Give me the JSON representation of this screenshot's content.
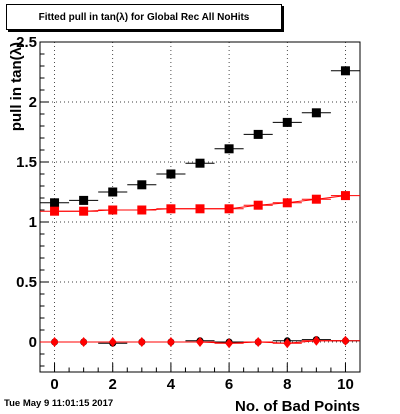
{
  "window_title": "Fitted pull in tan(λ) for Global Rec All NoHits",
  "timestamp": "Tue May  9 11:01:15 2017",
  "chart_data": {
    "type": "scatter",
    "title": "Fitted pull in tan(λ) for Global Rec All NoHits",
    "xlabel": "No. of Bad Points",
    "ylabel": "pull in tan(λ)",
    "xlim": [
      -0.5,
      10.5
    ],
    "ylim": [
      -0.25,
      2.5
    ],
    "x_ticks": [
      0,
      2,
      4,
      6,
      8,
      10
    ],
    "x_tick_labels": [
      "0",
      "2",
      "4",
      "6",
      "8",
      "10"
    ],
    "y_ticks": [
      0,
      0.5,
      1,
      1.5,
      2,
      2.5
    ],
    "y_tick_labels": [
      "0",
      "0.5",
      "1",
      "1.5",
      "2",
      "2.5"
    ],
    "grid": true,
    "series": [
      {
        "color": "#000000",
        "marker": "square",
        "line": false,
        "x": [
          0,
          1,
          2,
          3,
          4,
          5,
          6,
          7,
          8,
          9,
          10
        ],
        "values": [
          1.16,
          1.18,
          1.25,
          1.31,
          1.4,
          1.49,
          1.61,
          1.73,
          1.83,
          1.91,
          2.26
        ]
      },
      {
        "color": "#ff0000",
        "marker": "square",
        "line": true,
        "x": [
          0,
          1,
          2,
          3,
          4,
          5,
          6,
          7,
          8,
          9,
          10
        ],
        "values": [
          1.09,
          1.09,
          1.1,
          1.1,
          1.11,
          1.11,
          1.11,
          1.14,
          1.16,
          1.19,
          1.22
        ]
      },
      {
        "color": "#000000",
        "marker": "circle",
        "line": false,
        "x": [
          0,
          1,
          2,
          3,
          4,
          5,
          6,
          7,
          8,
          9,
          10
        ],
        "values": [
          0.0,
          0.0,
          -0.01,
          0.0,
          0.0,
          0.01,
          0.0,
          0.0,
          0.01,
          0.02,
          0.01
        ]
      },
      {
        "color": "#ff0000",
        "marker": "diamond",
        "line": true,
        "x": [
          0,
          1,
          2,
          3,
          4,
          5,
          6,
          7,
          8,
          9,
          10
        ],
        "values": [
          0.0,
          0.0,
          0.0,
          0.0,
          0.0,
          0.0,
          -0.01,
          0.0,
          -0.01,
          0.01,
          0.01
        ]
      }
    ]
  }
}
